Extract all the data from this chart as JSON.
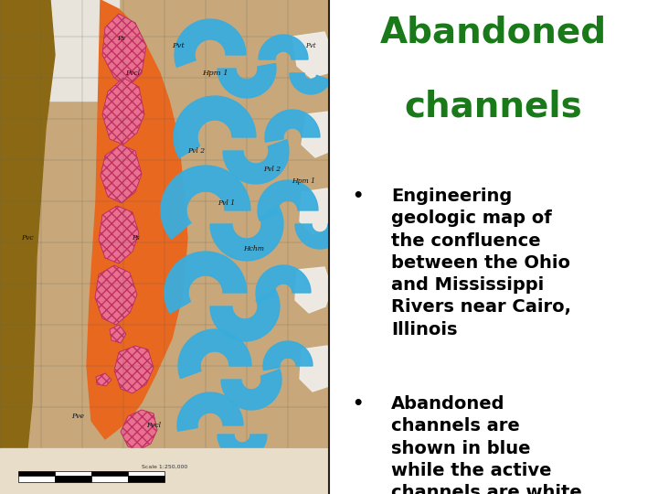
{
  "title_line1": "Abandoned",
  "title_line2": "channels",
  "title_color": "#1a7a1a",
  "title_fontsize": 28,
  "title_fontweight": "bold",
  "bullet1_lines": [
    "Engineering",
    "geologic map of",
    "the confluence",
    "between the Ohio",
    "and Mississippi",
    "Rivers near Cairo,",
    "Illinois"
  ],
  "bullet2_lines": [
    "Abandoned",
    "channels are",
    "shown in blue",
    "while the active",
    "channels are white"
  ],
  "bullet_fontsize": 14,
  "bullet_fontweight": "bold",
  "bullet_color": "#000000",
  "background_color": "#ffffff",
  "divider_color": "#888888",
  "map_tan": "#c8a87a",
  "map_tan2": "#d4b896",
  "map_orange": "#e86820",
  "map_pink": "#e87090",
  "map_brown": "#8b6914",
  "map_blue": "#3aaddd",
  "map_white": "#f0ede8",
  "map_gray": "#9090a0",
  "scale_bar_bg": "#e8ddc8"
}
